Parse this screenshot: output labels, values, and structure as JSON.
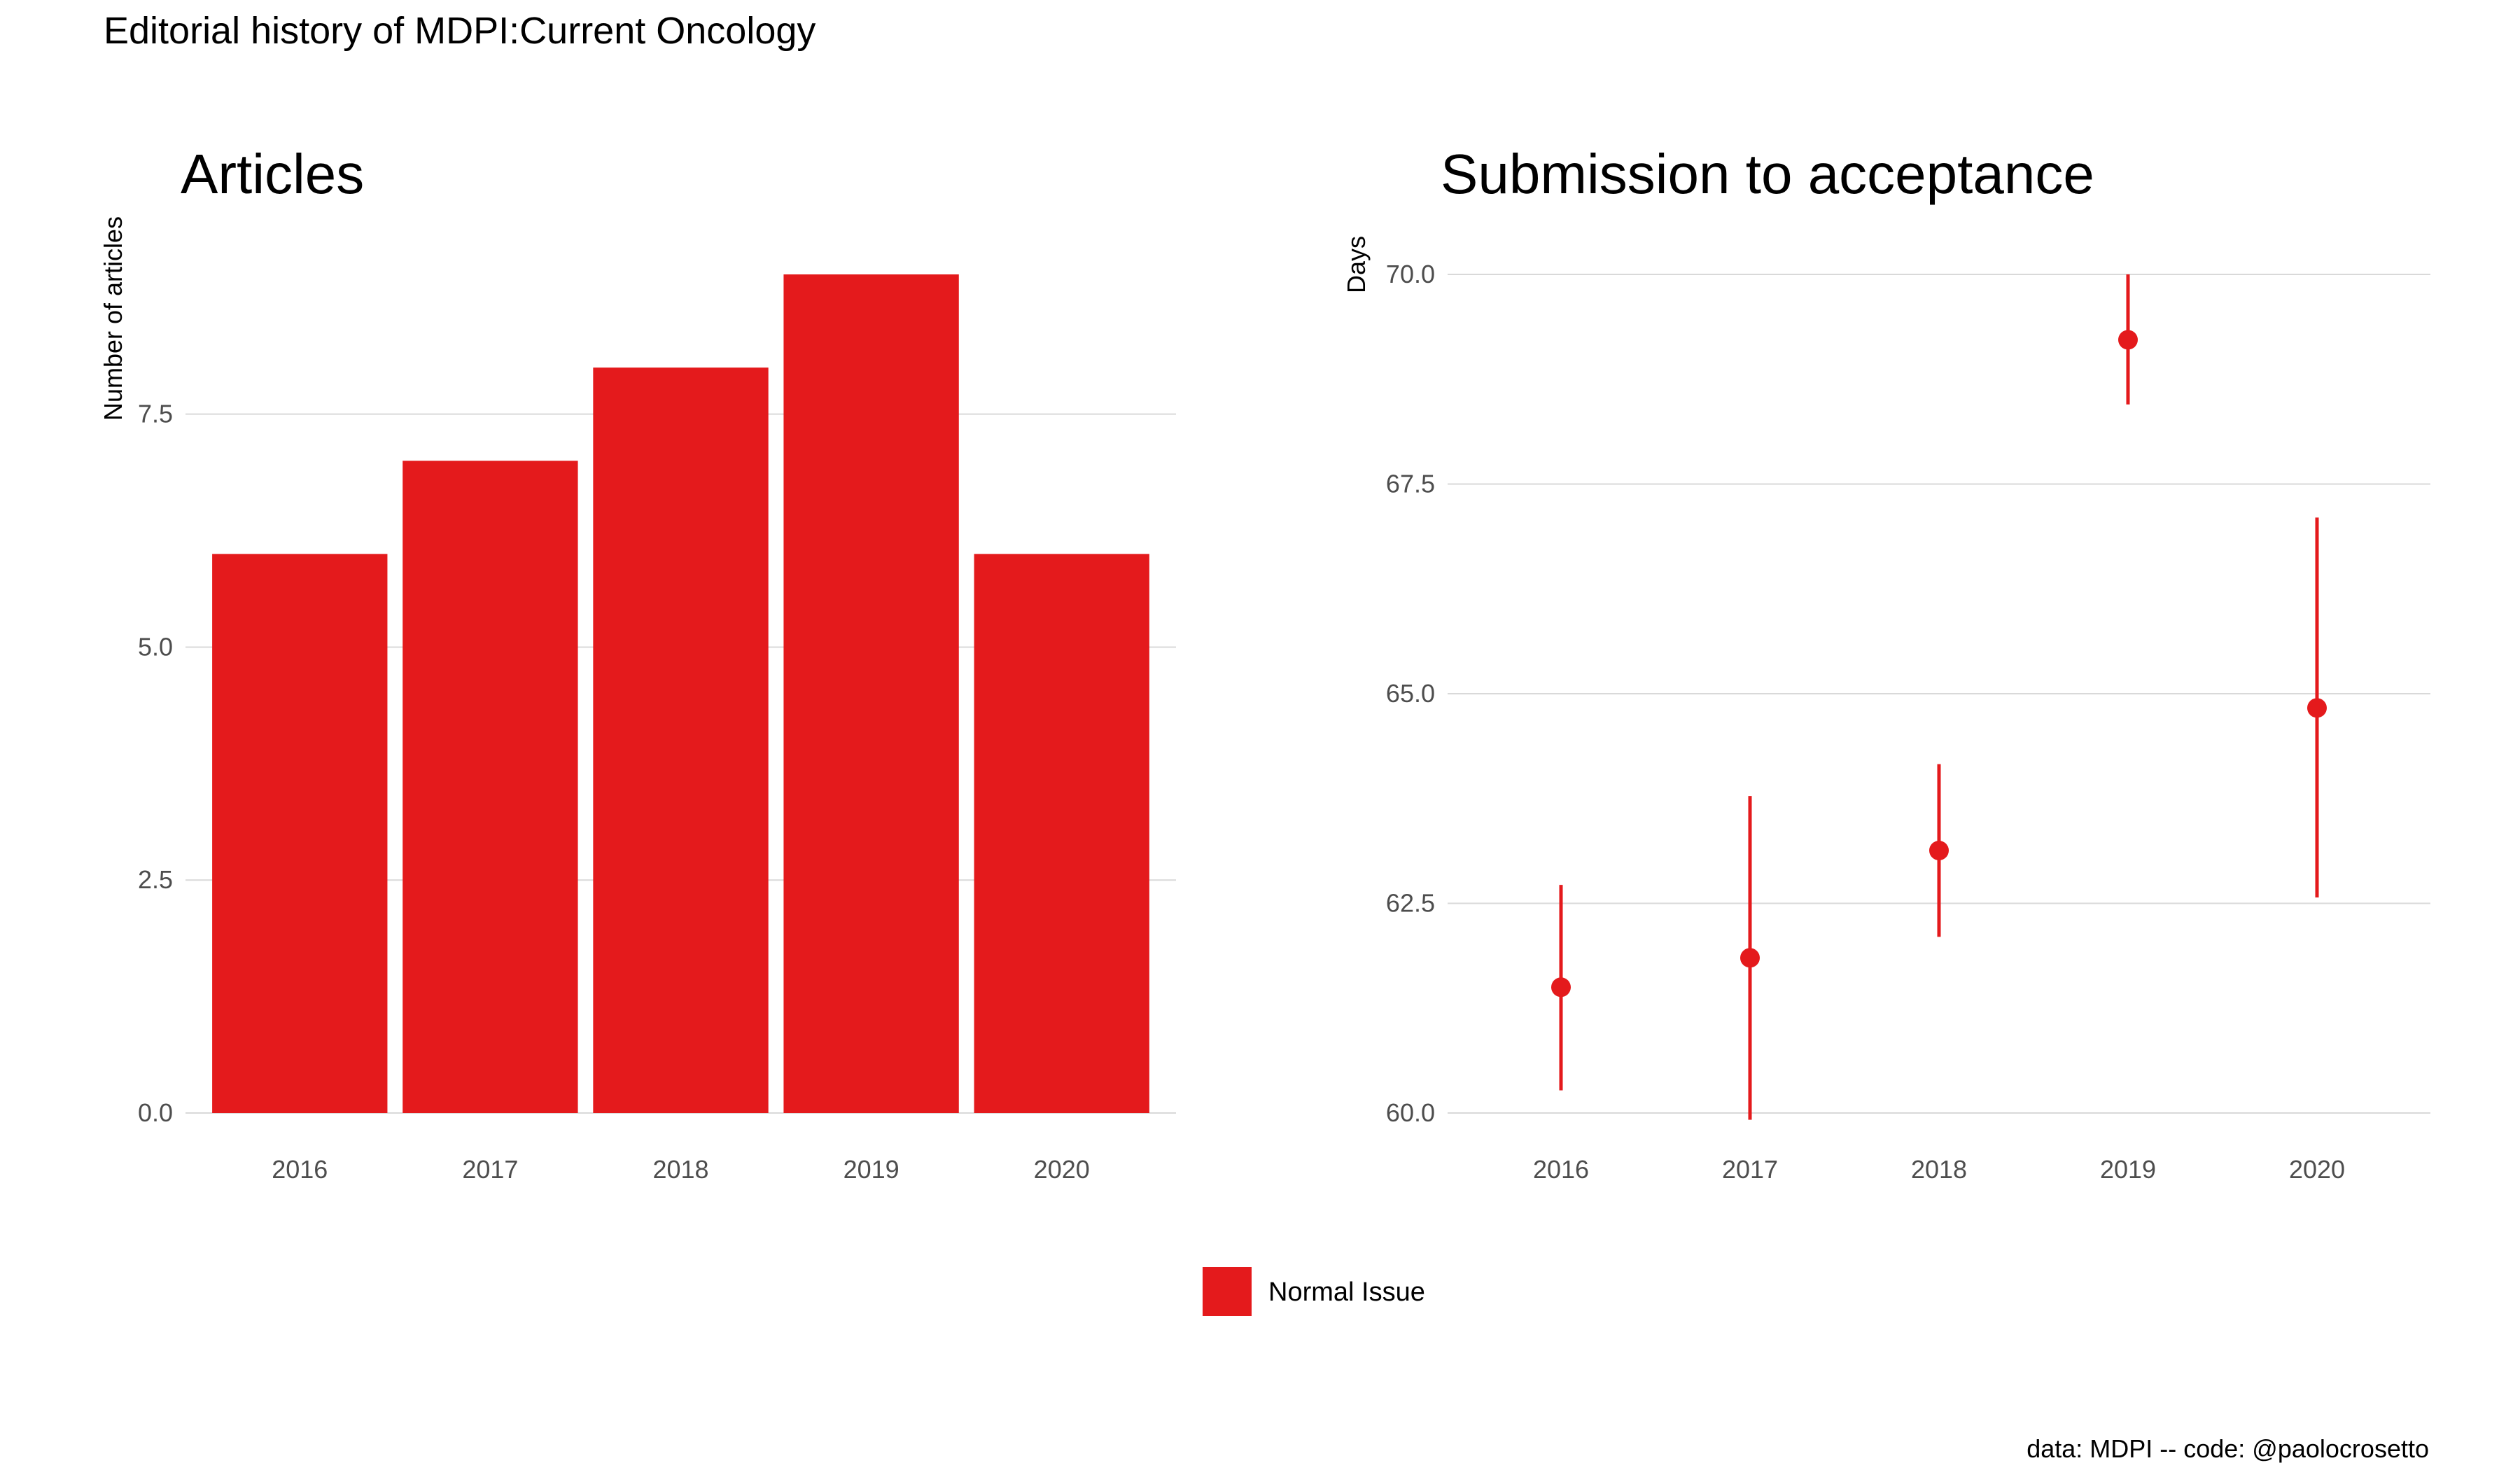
{
  "title": "Editorial history of MDPI:Current Oncology",
  "caption": "data: MDPI -- code: @paolocrosetto",
  "colors": {
    "normal_issue": "#e41a1c",
    "grid": "#d9d9d9",
    "tick_text": "#4d4d4d"
  },
  "legend": {
    "items": [
      {
        "label": "Normal Issue",
        "color": "#e41a1c"
      }
    ]
  },
  "chart_data": [
    {
      "type": "bar",
      "title": "Articles",
      "xlabel": "",
      "ylabel": "Number of articles",
      "categories": [
        "2016",
        "2017",
        "2018",
        "2019",
        "2020"
      ],
      "series": [
        {
          "name": "Normal Issue",
          "values": [
            6,
            7,
            8,
            9,
            6
          ]
        }
      ],
      "ylim": [
        0,
        9
      ],
      "yticks": [
        0,
        2.5,
        5,
        7.5
      ],
      "ytick_labels": [
        "0.0",
        "2.5",
        "5.0",
        "7.5"
      ],
      "grid": true
    },
    {
      "type": "scatter",
      "title": "Submission to acceptance",
      "xlabel": "",
      "ylabel": "Days",
      "categories": [
        "2016",
        "2017",
        "2018",
        "2019",
        "2020"
      ],
      "series": [
        {
          "name": "Normal Issue",
          "values": [
            61.5,
            61.85,
            63.13,
            69.22,
            64.83
          ],
          "lower": [
            60.27,
            59.92,
            62.1,
            68.45,
            62.57
          ],
          "upper": [
            62.72,
            63.78,
            64.16,
            70.0,
            67.1
          ]
        }
      ],
      "ylim": [
        59.6,
        70.0
      ],
      "yticks": [
        60,
        62.5,
        65,
        67.5,
        70
      ],
      "ytick_labels": [
        "60.0",
        "62.5",
        "65.0",
        "67.5",
        "70.0"
      ],
      "grid": true
    }
  ]
}
